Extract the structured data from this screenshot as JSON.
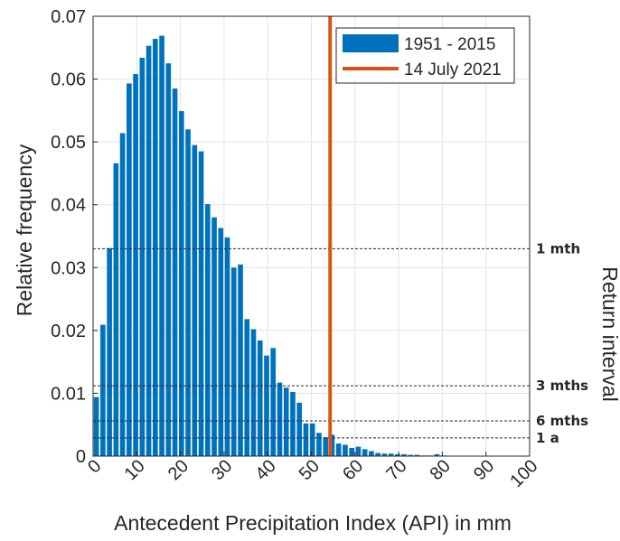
{
  "chart_data": {
    "type": "bar",
    "xlabel": "Antecedent Precipitation Index (API) in mm",
    "ylabel": "Relative frequency",
    "ylabel_right": "Return interval",
    "xlim": [
      0,
      100
    ],
    "ylim": [
      0,
      0.07
    ],
    "xticks": [
      0,
      10,
      20,
      30,
      40,
      50,
      60,
      70,
      80,
      90,
      100
    ],
    "yticks": [
      0,
      0.01,
      0.02,
      0.03,
      0.04,
      0.05,
      0.06,
      0.07
    ],
    "xtick_labels": [
      "0",
      "10",
      "20",
      "30",
      "40",
      "50",
      "60",
      "70",
      "80",
      "90",
      "100"
    ],
    "ytick_labels": [
      "0",
      "0.01",
      "0.02",
      "0.03",
      "0.04",
      "0.05",
      "0.06",
      "0.07"
    ],
    "grid": true,
    "bin_width": 1.5,
    "bin_start": 0,
    "series": [
      {
        "name": "1951 - 2015",
        "color": "#0072BD",
        "values": [
          0.0094,
          0.0209,
          0.0331,
          0.0466,
          0.0514,
          0.0593,
          0.0608,
          0.0634,
          0.0653,
          0.0664,
          0.0669,
          0.0625,
          0.0585,
          0.0549,
          0.052,
          0.0495,
          0.0485,
          0.0401,
          0.038,
          0.0363,
          0.0348,
          0.03,
          0.0305,
          0.0218,
          0.0202,
          0.0184,
          0.016,
          0.0172,
          0.0117,
          0.0109,
          0.0102,
          0.0085,
          0.0052,
          0.0052,
          0.0037,
          0.003,
          0.0034,
          0.002,
          0.0018,
          0.0013,
          0.0015,
          0.0011,
          0.0008,
          0.0005,
          0.0004,
          0.0004,
          0.0003,
          0.0003,
          0.0002,
          0.0002,
          0.0001,
          0.0001,
          0.0003,
          0.0001
        ]
      }
    ],
    "event": {
      "name": "14 July 2021",
      "x": 54.3,
      "color": "#D95319"
    },
    "return_intervals": [
      {
        "label": "1 mth",
        "y": 0.033
      },
      {
        "label": "3 mths",
        "y": 0.0112
      },
      {
        "label": "6 mths",
        "y": 0.0056
      },
      {
        "label": "1 a",
        "y": 0.0029
      }
    ],
    "legend": {
      "position": "top-right",
      "entries": [
        "1951 - 2015",
        "14 July 2021"
      ]
    }
  }
}
